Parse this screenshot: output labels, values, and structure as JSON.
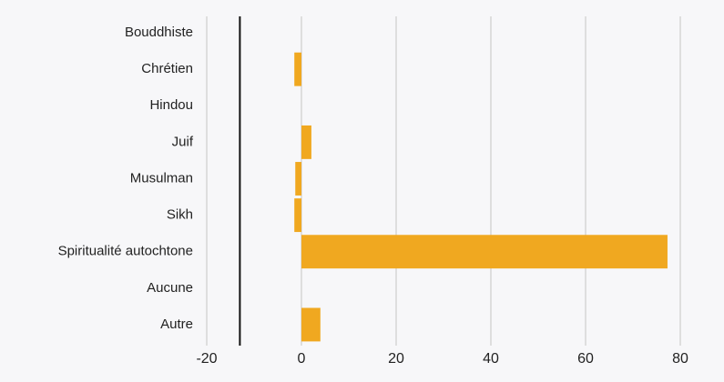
{
  "chart_data": {
    "type": "barh",
    "categories": [
      "Bouddhiste",
      "Chrétien",
      "Hindou",
      "Juif",
      "Musulman",
      "Sikh",
      "Spiritualité autochtone",
      "Aucune",
      "Autre"
    ],
    "values": [
      0,
      -1.5,
      0,
      2.1,
      -1.3,
      -1.5,
      77.3,
      0,
      4
    ],
    "color": "#f0a820",
    "xlim": [
      -20,
      80
    ],
    "xticks": [
      -20,
      0,
      20,
      40,
      60,
      80
    ],
    "grid": true,
    "reference_line": -13
  }
}
